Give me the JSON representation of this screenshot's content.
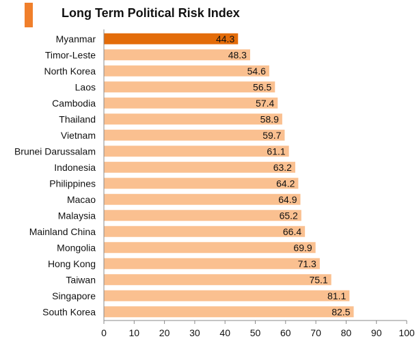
{
  "title": "Long Term Political Risk Index",
  "colors": {
    "accent": "#F07F2B",
    "highlight_bar": "#E36C0A",
    "bar": "#FAC090",
    "axis": "#888888",
    "text": "#111111"
  },
  "chart_data": {
    "type": "bar",
    "orientation": "horizontal",
    "title": "Long Term Political Risk Index",
    "categories": [
      "Myanmar",
      "Timor-Leste",
      "North Korea",
      "Laos",
      "Cambodia",
      "Thailand",
      "Vietnam",
      "Brunei Darussalam",
      "Indonesia",
      "Philippines",
      "Macao",
      "Malaysia",
      "Mainland China",
      "Mongolia",
      "Hong Kong",
      "Taiwan",
      "Singapore",
      "South Korea"
    ],
    "values": [
      44.3,
      48.3,
      54.6,
      56.5,
      57.4,
      58.9,
      59.7,
      61.1,
      63.2,
      64.2,
      64.9,
      65.2,
      66.4,
      69.9,
      71.3,
      75.1,
      81.1,
      82.5
    ],
    "value_labels": [
      "44.3",
      "48.3",
      "54.6",
      "56.5",
      "57.4",
      "58.9",
      "59.7",
      "61.1",
      "63.2",
      "64.2",
      "64.9",
      "65.2",
      "66.4",
      "69.9",
      "71.3",
      "75.1",
      "81.1",
      "82.5"
    ],
    "highlighted_category": "Myanmar",
    "xlim": [
      0,
      100
    ],
    "xticks": [
      0,
      10,
      20,
      30,
      40,
      50,
      60,
      70,
      80,
      90,
      100
    ],
    "xlabel": "",
    "ylabel": "",
    "grid": false,
    "legend": "none"
  }
}
